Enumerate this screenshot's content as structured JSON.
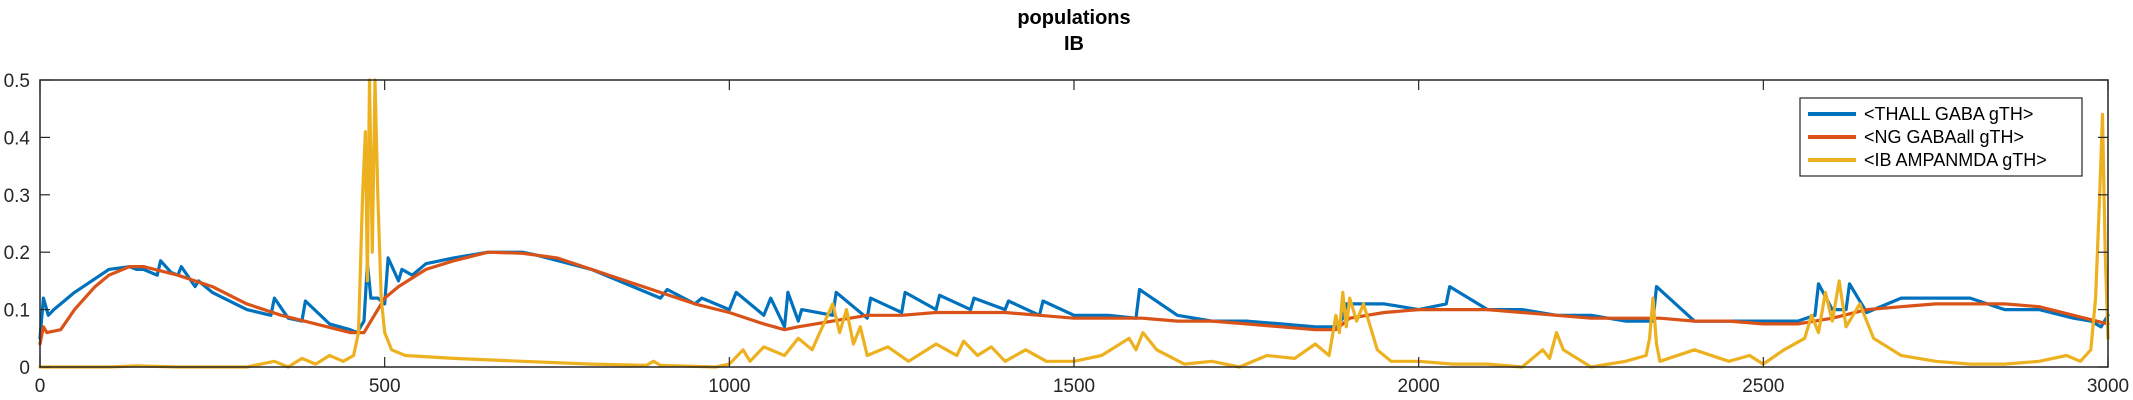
{
  "chart_data": {
    "type": "line",
    "title": [
      "populations",
      "IB"
    ],
    "xlabel": "",
    "ylabel": "",
    "xlim": [
      0,
      3000
    ],
    "ylim": [
      0,
      0.5
    ],
    "xticks": [
      0,
      500,
      1000,
      1500,
      2000,
      2500,
      3000
    ],
    "xtick_labels": [
      "0",
      "500",
      "1000",
      "1500",
      "2000",
      "2500",
      "3000"
    ],
    "yticks": [
      0,
      0.1,
      0.2,
      0.3,
      0.4,
      0.5
    ],
    "ytick_labels": [
      "0",
      "0.1",
      "0.2",
      "0.3",
      "0.4",
      "0.5"
    ],
    "grid": false,
    "legend": "top-right",
    "series": [
      {
        "name": "<THALL GABA gTH>",
        "color": "#0072BD",
        "x": [
          0,
          5,
          12,
          20,
          50,
          100,
          130,
          140,
          150,
          170,
          175,
          190,
          200,
          205,
          225,
          230,
          250,
          300,
          335,
          340,
          360,
          380,
          385,
          420,
          450,
          460,
          470,
          475,
          480,
          490,
          500,
          505,
          520,
          525,
          540,
          560,
          600,
          650,
          700,
          720,
          800,
          860,
          900,
          910,
          950,
          960,
          1000,
          1010,
          1050,
          1060,
          1080,
          1085,
          1100,
          1105,
          1150,
          1155,
          1200,
          1205,
          1250,
          1255,
          1300,
          1305,
          1350,
          1355,
          1400,
          1405,
          1450,
          1455,
          1500,
          1550,
          1590,
          1595,
          1650,
          1700,
          1750,
          1800,
          1850,
          1880,
          1890,
          1895,
          1950,
          2000,
          2040,
          2045,
          2100,
          2150,
          2200,
          2250,
          2300,
          2340,
          2345,
          2400,
          2450,
          2500,
          2550,
          2575,
          2580,
          2600,
          2620,
          2625,
          2650,
          2700,
          2750,
          2800,
          2850,
          2900,
          2950,
          2975,
          2990,
          3000
        ],
        "y": [
          0.05,
          0.12,
          0.09,
          0.1,
          0.13,
          0.17,
          0.175,
          0.17,
          0.17,
          0.16,
          0.185,
          0.165,
          0.16,
          0.175,
          0.14,
          0.15,
          0.13,
          0.1,
          0.09,
          0.12,
          0.085,
          0.08,
          0.115,
          0.075,
          0.065,
          0.06,
          0.08,
          0.18,
          0.12,
          0.12,
          0.11,
          0.19,
          0.15,
          0.17,
          0.16,
          0.18,
          0.19,
          0.2,
          0.2,
          0.195,
          0.17,
          0.14,
          0.12,
          0.135,
          0.11,
          0.12,
          0.1,
          0.13,
          0.09,
          0.12,
          0.07,
          0.13,
          0.08,
          0.1,
          0.09,
          0.13,
          0.085,
          0.12,
          0.095,
          0.13,
          0.1,
          0.125,
          0.1,
          0.12,
          0.1,
          0.115,
          0.09,
          0.115,
          0.09,
          0.09,
          0.085,
          0.135,
          0.09,
          0.08,
          0.08,
          0.075,
          0.07,
          0.07,
          0.085,
          0.11,
          0.11,
          0.1,
          0.11,
          0.14,
          0.1,
          0.1,
          0.09,
          0.09,
          0.08,
          0.08,
          0.14,
          0.08,
          0.08,
          0.08,
          0.08,
          0.09,
          0.145,
          0.1,
          0.1,
          0.145,
          0.095,
          0.12,
          0.12,
          0.12,
          0.1,
          0.1,
          0.085,
          0.08,
          0.07,
          0.09
        ]
      },
      {
        "name": "<NG GABAall gTH>",
        "color": "#D95319",
        "x": [
          0,
          5,
          10,
          30,
          50,
          80,
          100,
          130,
          150,
          200,
          250,
          300,
          350,
          400,
          450,
          470,
          480,
          500,
          520,
          560,
          600,
          650,
          700,
          750,
          800,
          850,
          900,
          950,
          1000,
          1050,
          1080,
          1100,
          1150,
          1200,
          1250,
          1300,
          1350,
          1400,
          1450,
          1500,
          1550,
          1600,
          1650,
          1700,
          1750,
          1800,
          1850,
          1880,
          1900,
          1950,
          2000,
          2050,
          2100,
          2150,
          2200,
          2250,
          2300,
          2350,
          2400,
          2450,
          2500,
          2550,
          2600,
          2650,
          2700,
          2750,
          2800,
          2850,
          2900,
          2950,
          3000
        ],
        "y": [
          0.04,
          0.07,
          0.06,
          0.065,
          0.1,
          0.14,
          0.16,
          0.175,
          0.175,
          0.16,
          0.14,
          0.11,
          0.09,
          0.075,
          0.06,
          0.06,
          0.08,
          0.12,
          0.14,
          0.17,
          0.185,
          0.2,
          0.198,
          0.19,
          0.17,
          0.15,
          0.13,
          0.11,
          0.095,
          0.075,
          0.065,
          0.07,
          0.08,
          0.09,
          0.09,
          0.095,
          0.095,
          0.095,
          0.09,
          0.085,
          0.085,
          0.085,
          0.08,
          0.08,
          0.075,
          0.07,
          0.065,
          0.065,
          0.085,
          0.095,
          0.1,
          0.1,
          0.1,
          0.095,
          0.09,
          0.085,
          0.085,
          0.085,
          0.08,
          0.08,
          0.075,
          0.075,
          0.085,
          0.1,
          0.105,
          0.11,
          0.11,
          0.11,
          0.105,
          0.09,
          0.075
        ]
      },
      {
        "name": "<IB AMPANMDA gTH>",
        "color": "#EDB120",
        "x": [
          0,
          20,
          60,
          100,
          140,
          200,
          260,
          300,
          340,
          360,
          380,
          400,
          420,
          440,
          455,
          462,
          468,
          472,
          475,
          478,
          482,
          486,
          490,
          495,
          500,
          510,
          530,
          600,
          700,
          800,
          880,
          890,
          900,
          980,
          1000,
          1020,
          1030,
          1050,
          1080,
          1100,
          1120,
          1150,
          1160,
          1170,
          1180,
          1190,
          1200,
          1230,
          1260,
          1300,
          1330,
          1340,
          1360,
          1380,
          1400,
          1430,
          1460,
          1500,
          1540,
          1580,
          1590,
          1600,
          1620,
          1660,
          1700,
          1740,
          1780,
          1820,
          1850,
          1870,
          1880,
          1885,
          1890,
          1895,
          1900,
          1910,
          1920,
          1940,
          1960,
          2000,
          2050,
          2100,
          2150,
          2180,
          2190,
          2200,
          2210,
          2250,
          2300,
          2330,
          2335,
          2340,
          2345,
          2350,
          2400,
          2450,
          2480,
          2500,
          2530,
          2560,
          2570,
          2580,
          2590,
          2600,
          2610,
          2620,
          2640,
          2660,
          2700,
          2750,
          2800,
          2850,
          2900,
          2940,
          2960,
          2975,
          2982,
          2988,
          2992,
          2996,
          3000
        ],
        "y": [
          0.0,
          0.0,
          0.0,
          0.0,
          0.002,
          0.0,
          0.0,
          0.0,
          0.01,
          0.0,
          0.015,
          0.005,
          0.02,
          0.01,
          0.02,
          0.06,
          0.3,
          0.41,
          0.15,
          0.5,
          0.2,
          0.5,
          0.3,
          0.12,
          0.06,
          0.03,
          0.02,
          0.015,
          0.01,
          0.005,
          0.003,
          0.01,
          0.003,
          0.0,
          0.005,
          0.03,
          0.01,
          0.035,
          0.02,
          0.05,
          0.03,
          0.11,
          0.06,
          0.1,
          0.04,
          0.07,
          0.02,
          0.035,
          0.01,
          0.04,
          0.02,
          0.045,
          0.02,
          0.035,
          0.01,
          0.03,
          0.01,
          0.01,
          0.02,
          0.05,
          0.03,
          0.06,
          0.03,
          0.005,
          0.01,
          0.0,
          0.02,
          0.015,
          0.04,
          0.02,
          0.09,
          0.06,
          0.13,
          0.07,
          0.12,
          0.08,
          0.11,
          0.03,
          0.01,
          0.01,
          0.005,
          0.005,
          0.0,
          0.03,
          0.015,
          0.06,
          0.03,
          0.0,
          0.01,
          0.02,
          0.05,
          0.12,
          0.04,
          0.01,
          0.03,
          0.01,
          0.02,
          0.005,
          0.03,
          0.05,
          0.09,
          0.06,
          0.13,
          0.08,
          0.15,
          0.07,
          0.11,
          0.05,
          0.02,
          0.01,
          0.005,
          0.005,
          0.01,
          0.02,
          0.01,
          0.03,
          0.12,
          0.3,
          0.44,
          0.2,
          0.05
        ]
      }
    ]
  }
}
